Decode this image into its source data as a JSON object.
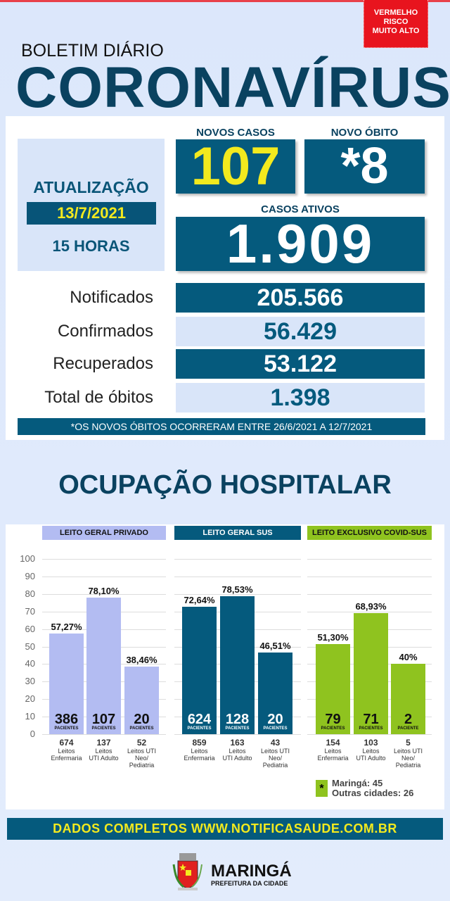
{
  "header": {
    "badge": [
      "VERMELHO",
      "RISCO",
      "MUITO ALTO"
    ],
    "subtitle": "BOLETIM DIÁRIO",
    "title": "CORONAVÍRUS"
  },
  "update": {
    "label": "ATUALIZAÇÃO",
    "date": "13/7/2021",
    "time": "15 HORAS"
  },
  "new_cases": {
    "label": "NOVOS CASOS",
    "value": "107"
  },
  "new_deaths": {
    "label": "NOVO ÓBITO",
    "value": "*8"
  },
  "active": {
    "label": "CASOS ATIVOS",
    "value": "1.909"
  },
  "stats": [
    {
      "label": "Notificados",
      "value": "205.566"
    },
    {
      "label": "Confirmados",
      "value": "56.429"
    },
    {
      "label": "Recuperados",
      "value": "53.122"
    },
    {
      "label": "Total de óbitos",
      "value": "1.398"
    }
  ],
  "note": "*OS NOVOS ÓBITOS OCORRERAM ENTRE 26/6/2021 A 12/7/2021",
  "occupancy_title": "OCUPAÇÃO HOSPITALAR",
  "colors": {
    "private": "#b3bcf2",
    "sus": "#055a7d",
    "covid": "#8fc31f",
    "accent_yellow": "#f3ea1e",
    "alert_red": "#e8141e"
  },
  "chart_data": {
    "type": "bar",
    "ylim": [
      0,
      100
    ],
    "yticks": [
      "100",
      "90",
      "80",
      "70",
      "60",
      "50",
      "40",
      "30",
      "20",
      "10",
      "0"
    ],
    "grid": true,
    "groups": [
      {
        "name": "LEITO GERAL PRIVADO",
        "bars": [
          {
            "value": 57.27,
            "label": "57,27%",
            "patients": "386",
            "patients_label": "PACIENTES",
            "beds": "674",
            "bed_type": [
              "Leitos",
              "Enfermaria"
            ]
          },
          {
            "value": 78.1,
            "label": "78,10%",
            "patients": "107",
            "patients_label": "PACIENTES",
            "beds": "137",
            "bed_type": [
              "Leitos",
              "UTI Adulto"
            ]
          },
          {
            "value": 38.46,
            "label": "38,46%",
            "patients": "20",
            "patients_label": "PACIENTES",
            "beds": "52",
            "bed_type": [
              "Leitos UTI",
              "Neo/",
              "Pediatria"
            ]
          }
        ]
      },
      {
        "name": "LEITO GERAL SUS",
        "bars": [
          {
            "value": 72.64,
            "label": "72,64%",
            "patients": "624",
            "patients_label": "PACIENTES",
            "beds": "859",
            "bed_type": [
              "Leitos",
              "Enfermaria"
            ]
          },
          {
            "value": 78.53,
            "label": "78,53%",
            "patients": "128",
            "patients_label": "PACIENTES",
            "beds": "163",
            "bed_type": [
              "Leitos",
              "UTI Adulto"
            ]
          },
          {
            "value": 46.51,
            "label": "46,51%",
            "patients": "20",
            "patients_label": "PACIENTES",
            "beds": "43",
            "bed_type": [
              "Leitos UTI",
              "Neo/",
              "Pediatria"
            ]
          }
        ]
      },
      {
        "name": "LEITO EXCLUSIVO COVID-SUS",
        "bars": [
          {
            "value": 51.3,
            "label": "51,30%",
            "patients": "79",
            "patients_label": "PACIENTES",
            "beds": "154",
            "bed_type": [
              "Leitos",
              "Enfermaria"
            ]
          },
          {
            "value": 68.93,
            "label": "68,93%",
            "patients": "71",
            "patients_label": "PACIENTES",
            "beds": "103",
            "bed_type": [
              "Leitos",
              "UTI Adulto"
            ]
          },
          {
            "value": 40,
            "label": "40%",
            "patients": "2",
            "patients_label": "PACIENTE",
            "beds": "5",
            "bed_type": [
              "Leitos UTI",
              "Neo/",
              "Pediatria"
            ]
          }
        ]
      }
    ]
  },
  "legend": {
    "symbol": "*",
    "lines": [
      "Maringá: 45",
      "Outras cidades: 26"
    ]
  },
  "footer": {
    "text": "DADOS COMPLETOS  WWW.NOTIFICASAUDE.COM.BR",
    "city": "MARINGÁ",
    "city_sub": "PREFEITURA DA CIDADE"
  }
}
